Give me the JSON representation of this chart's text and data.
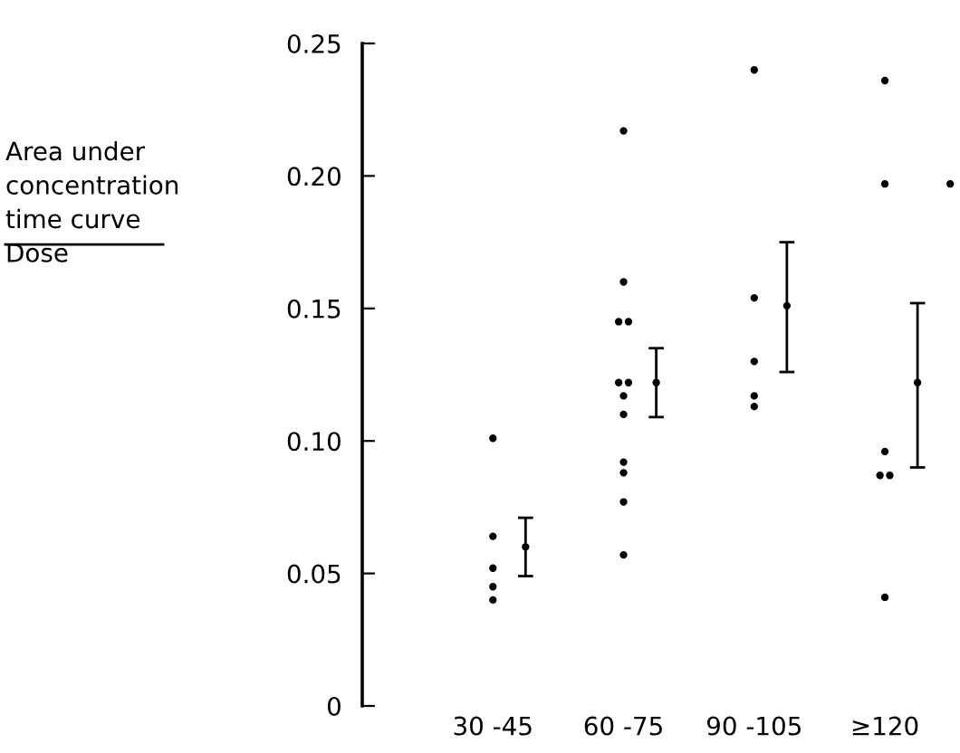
{
  "chart_data": {
    "type": "scatter",
    "ylabel": "Area under\nconcentration\ntime curve\nDose",
    "categories": [
      "30 -45",
      null,
      null,
      null,
      "60 -75",
      null,
      null,
      null,
      "90 -105",
      null,
      null,
      null,
      "≥120",
      null,
      null
    ],
    "ylim": [
      0,
      0.25
    ],
    "yticks": [
      {
        "value": 0,
        "label": "0"
      },
      0.05,
      {
        "value": 0.1,
        "label": "0.10"
      },
      0.15,
      {
        "value": 0.2,
        "label": "0.20"
      },
      0.25
    ],
    "grid": false,
    "marker": "circle",
    "series": [
      {
        "color": "#000000",
        "x": [
          "30 -45",
          "30 -45",
          "30 -45",
          "30 -45",
          "30 -45",
          "60 -75",
          "60 -75",
          "60 -75",
          "60 -75",
          "60 -75",
          "60 -75",
          "60 -75",
          "60 -75",
          "60 -75",
          "60 -75",
          "60 -75",
          "60 -75",
          "90 -105",
          "90 -105",
          "90 -105",
          "90 -105",
          "90 -105",
          "≥120",
          "≥120",
          "≥120",
          "≥120",
          "≥120",
          "≥120"
        ],
        "values": [
          0.101,
          0.064,
          0.052,
          0.045,
          0.04,
          0.217,
          0.16,
          0.145,
          0.145,
          0.122,
          0.122,
          0.117,
          0.11,
          0.092,
          0.088,
          0.077,
          0.057,
          0.24,
          0.154,
          0.13,
          0.117,
          0.113,
          0.236,
          0.197,
          0.096,
          0.087,
          0.087,
          0.041
        ]
      },
      {
        "color": "#000000",
        "values": [
          null,
          null,
          null,
          null,
          null,
          null,
          null,
          null,
          null,
          null,
          null,
          null,
          null,
          null,
          0.197
        ]
      },
      {
        "color": "#000000",
        "values": [
          null,
          0.06,
          null,
          null,
          null,
          0.122,
          null,
          null,
          null,
          0.151,
          null,
          null,
          null,
          0.122,
          null
        ],
        "errors": [
          null,
          [
            0.049,
            0.071
          ],
          null,
          null,
          null,
          [
            0.109,
            0.135
          ],
          null,
          null,
          null,
          [
            0.126,
            0.175
          ],
          null,
          null,
          null,
          [
            0.09,
            0.152
          ],
          null
        ]
      }
    ]
  }
}
